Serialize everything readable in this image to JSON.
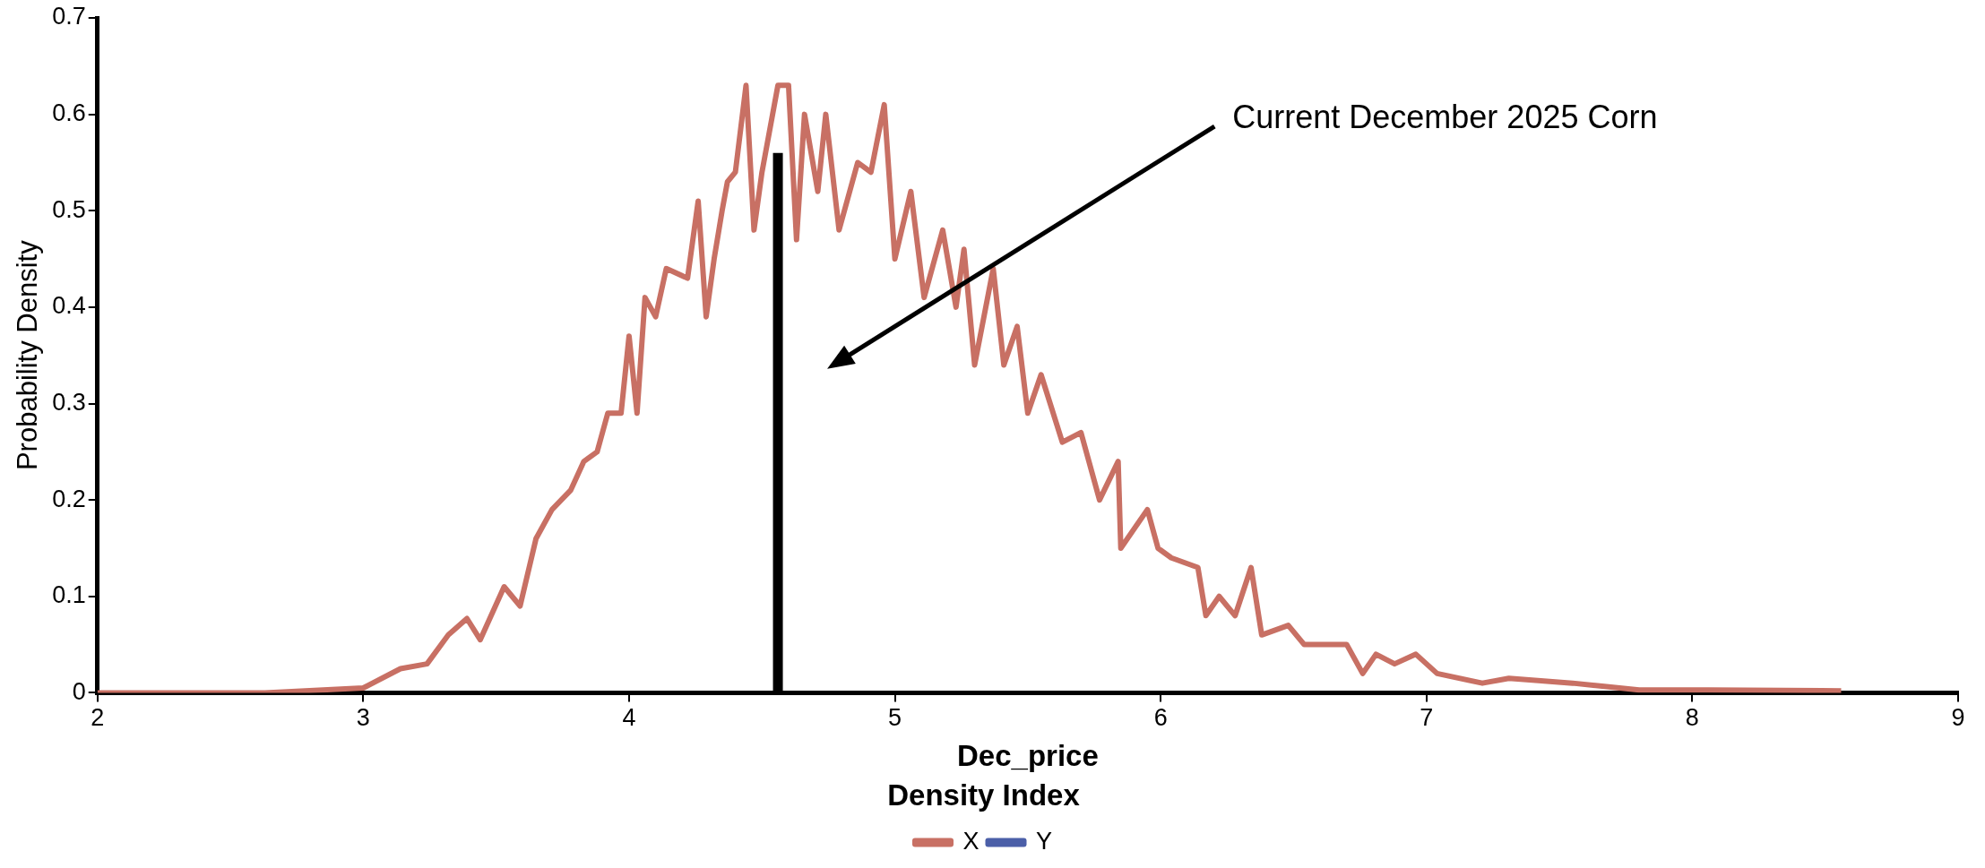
{
  "chart_data": {
    "type": "line",
    "xlabel": "Dec_price",
    "ylabel": "Probability Density",
    "legend_title": "Density Index",
    "legend": "bottom",
    "grid": false,
    "marker": "none",
    "line_style": "solid",
    "xlim": [
      2,
      9
    ],
    "xticks": [
      2,
      3,
      4,
      5,
      6,
      7,
      8,
      9
    ],
    "ylim": [
      0,
      0.7
    ],
    "yticks": [
      0,
      0.1,
      0.2,
      0.3,
      0.4,
      0.5,
      0.6,
      0.7
    ],
    "annotations": [
      "Current December 2025 Corn"
    ],
    "series": [
      {
        "name": "X",
        "color": "#c87064",
        "x": [
          2,
          2.63,
          3.0,
          3.14,
          3.24,
          3.32,
          3.39,
          3.44,
          3.53,
          3.59,
          3.65,
          3.71,
          3.78,
          3.83,
          3.88,
          3.92,
          3.97,
          4.0,
          4.03,
          4.06,
          4.1,
          4.14,
          4.22,
          4.26,
          4.29,
          4.32,
          4.35,
          4.37,
          4.4,
          4.44,
          4.47,
          4.5,
          4.56,
          4.6,
          4.63,
          4.66,
          4.71,
          4.74,
          4.79,
          4.86,
          4.91,
          4.96,
          5.0,
          5.06,
          5.11,
          5.18,
          5.23,
          5.26,
          5.3,
          5.37,
          5.41,
          5.46,
          5.5,
          5.55,
          5.63,
          5.7,
          5.77,
          5.84,
          5.85,
          5.95,
          5.99,
          6.04,
          6.14,
          6.17,
          6.22,
          6.28,
          6.34,
          6.38,
          6.48,
          6.54,
          6.7,
          6.76,
          6.81,
          6.88,
          6.96,
          7.04,
          7.21,
          7.31,
          7.55,
          7.8,
          8.06,
          8.56
        ],
        "values": [
          0,
          0,
          0.005,
          0.025,
          0.03,
          0.06,
          0.077,
          0.055,
          0.11,
          0.09,
          0.16,
          0.19,
          0.21,
          0.24,
          0.25,
          0.29,
          0.29,
          0.37,
          0.29,
          0.41,
          0.39,
          0.44,
          0.43,
          0.51,
          0.39,
          0.45,
          0.5,
          0.53,
          0.54,
          0.63,
          0.48,
          0.54,
          0.63,
          0.63,
          0.47,
          0.6,
          0.52,
          0.6,
          0.48,
          0.55,
          0.54,
          0.61,
          0.45,
          0.52,
          0.41,
          0.48,
          0.4,
          0.46,
          0.34,
          0.44,
          0.34,
          0.38,
          0.29,
          0.33,
          0.26,
          0.27,
          0.2,
          0.24,
          0.15,
          0.19,
          0.15,
          0.14,
          0.13,
          0.08,
          0.1,
          0.08,
          0.13,
          0.06,
          0.07,
          0.05,
          0.05,
          0.02,
          0.04,
          0.03,
          0.04,
          0.02,
          0.01,
          0.015,
          0.01,
          0.003,
          0.003,
          0.002
        ]
      },
      {
        "name": "Y",
        "color": "#4b5fa8"
      },
      {
        "color": "#000000",
        "x": [
          4.56,
          4.56
        ],
        "values": [
          0,
          0.56
        ]
      }
    ]
  }
}
